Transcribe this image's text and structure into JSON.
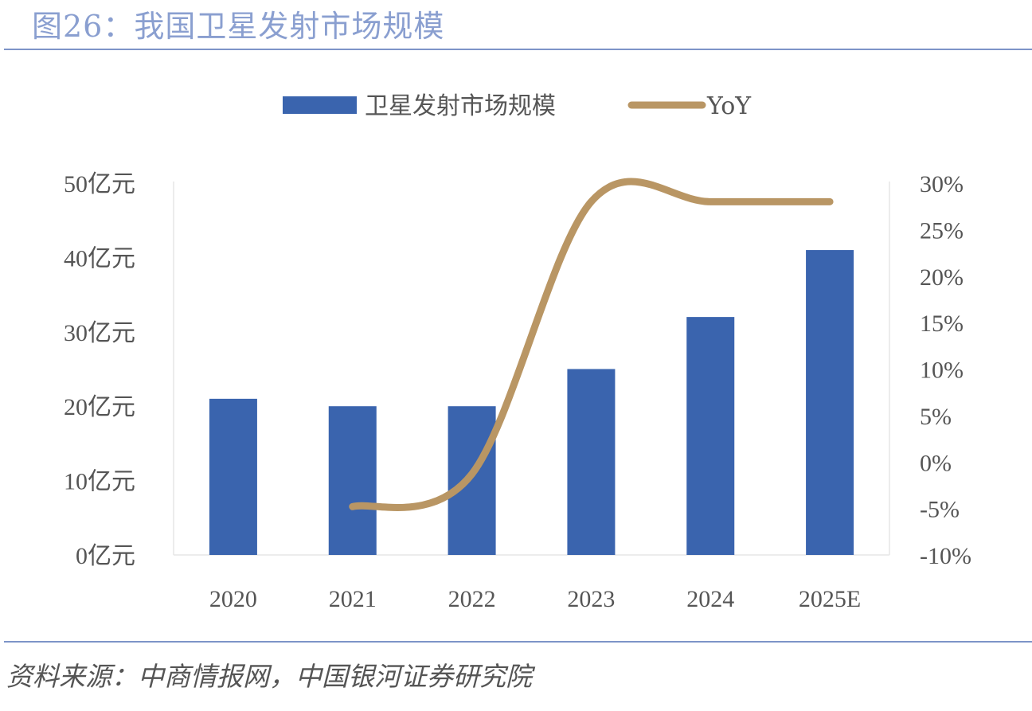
{
  "figure": {
    "title": "图26：我国卫星发射市场规模",
    "source": "资料来源：中商情报网，中国银河证券研究院"
  },
  "colors": {
    "bar": "#3a64ae",
    "line": "#b99664",
    "title": "#8a9fd0",
    "rule": "#7d94c8"
  },
  "chart_data": {
    "type": "bar",
    "title": "",
    "categories": [
      "2020",
      "2021",
      "2022",
      "2023",
      "2024",
      "2025E"
    ],
    "series": [
      {
        "name": "卫星发射市场规模",
        "type": "bar",
        "axis": "left",
        "values": [
          21,
          20,
          20,
          25,
          32,
          41
        ]
      },
      {
        "name": "YoY",
        "type": "line",
        "axis": "right",
        "values": [
          null,
          -4.8,
          -1.3,
          28,
          28,
          28
        ]
      }
    ],
    "left_axis": {
      "min": 0,
      "max": 50,
      "step": 10,
      "tick_labels": [
        "0亿元",
        "10亿元",
        "20亿元",
        "30亿元",
        "40亿元",
        "50亿元"
      ]
    },
    "right_axis": {
      "min": -10,
      "max": 30,
      "step": 5,
      "tick_labels": [
        "-10%",
        "-5%",
        "0%",
        "5%",
        "10%",
        "15%",
        "20%",
        "25%",
        "30%"
      ]
    },
    "legend": {
      "position": "top",
      "entries": [
        "卫星发射市场规模",
        "YoY"
      ]
    },
    "grid": false
  }
}
